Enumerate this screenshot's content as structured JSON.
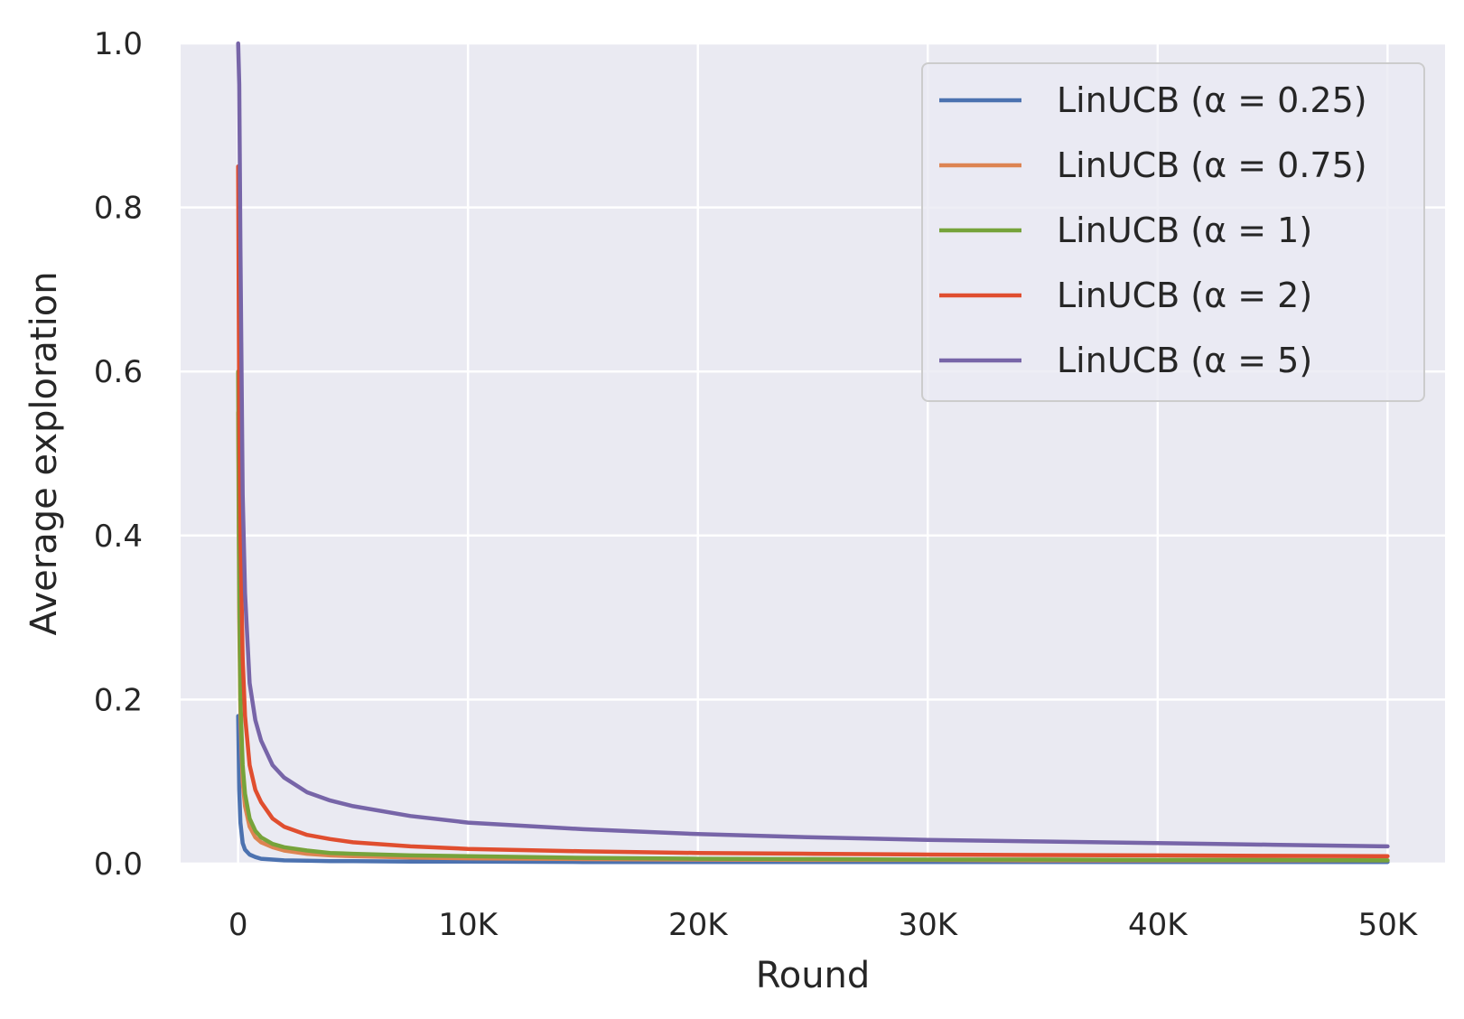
{
  "chart_data": {
    "type": "line",
    "xlabel": "Round",
    "ylabel": "Average exploration",
    "xlim": [
      -2500,
      52500
    ],
    "ylim": [
      0,
      1.0
    ],
    "grid": true,
    "legend_position": "top-right",
    "x_ticks": [
      {
        "value": 0,
        "label": "0"
      },
      {
        "value": 10000,
        "label": "10K"
      },
      {
        "value": 20000,
        "label": "20K"
      },
      {
        "value": 30000,
        "label": "30K"
      },
      {
        "value": 40000,
        "label": "40K"
      },
      {
        "value": 50000,
        "label": "50K"
      }
    ],
    "y_ticks": [
      {
        "value": 0.0,
        "label": "0.0"
      },
      {
        "value": 0.2,
        "label": "0.2"
      },
      {
        "value": 0.4,
        "label": "0.4"
      },
      {
        "value": 0.6,
        "label": "0.6"
      },
      {
        "value": 0.8,
        "label": "0.8"
      },
      {
        "value": 1.0,
        "label": "1.0"
      }
    ],
    "x": [
      1,
      50,
      100,
      200,
      300,
      500,
      750,
      1000,
      1500,
      2000,
      3000,
      4000,
      5000,
      7500,
      10000,
      15000,
      20000,
      25000,
      30000,
      35000,
      40000,
      45000,
      50000
    ],
    "series": [
      {
        "name": "LinUCB (α = 0.25)",
        "color": "#4c72b0",
        "values": [
          0.18,
          0.09,
          0.05,
          0.025,
          0.017,
          0.011,
          0.008,
          0.006,
          0.005,
          0.004,
          0.0035,
          0.003,
          0.003,
          0.0025,
          0.0025,
          0.002,
          0.002,
          0.002,
          0.002,
          0.002,
          0.002,
          0.002,
          0.002
        ]
      },
      {
        "name": "LinUCB (α = 0.75)",
        "color": "#dd8452",
        "values": [
          0.55,
          0.3,
          0.18,
          0.1,
          0.07,
          0.045,
          0.032,
          0.026,
          0.02,
          0.016,
          0.012,
          0.01,
          0.009,
          0.0075,
          0.0065,
          0.0055,
          0.005,
          0.0045,
          0.0045,
          0.004,
          0.004,
          0.004,
          0.004
        ]
      },
      {
        "name": "LinUCB (α = 1)",
        "color": "#76a33a",
        "values": [
          0.6,
          0.34,
          0.2,
          0.12,
          0.085,
          0.055,
          0.04,
          0.032,
          0.024,
          0.02,
          0.016,
          0.013,
          0.012,
          0.01,
          0.009,
          0.007,
          0.006,
          0.0055,
          0.005,
          0.005,
          0.0045,
          0.0045,
          0.004
        ]
      },
      {
        "name": "LinUCB (α = 2)",
        "color": "#e04e2f",
        "values": [
          0.85,
          0.55,
          0.4,
          0.25,
          0.18,
          0.12,
          0.09,
          0.075,
          0.055,
          0.045,
          0.035,
          0.03,
          0.026,
          0.021,
          0.018,
          0.015,
          0.013,
          0.012,
          0.011,
          0.0105,
          0.01,
          0.0095,
          0.009
        ]
      },
      {
        "name": "LinUCB (α = 5)",
        "color": "#7765a8",
        "values": [
          1.0,
          0.95,
          0.75,
          0.45,
          0.33,
          0.22,
          0.175,
          0.15,
          0.12,
          0.105,
          0.087,
          0.077,
          0.07,
          0.058,
          0.05,
          0.042,
          0.036,
          0.032,
          0.029,
          0.027,
          0.025,
          0.023,
          0.021
        ]
      }
    ]
  }
}
